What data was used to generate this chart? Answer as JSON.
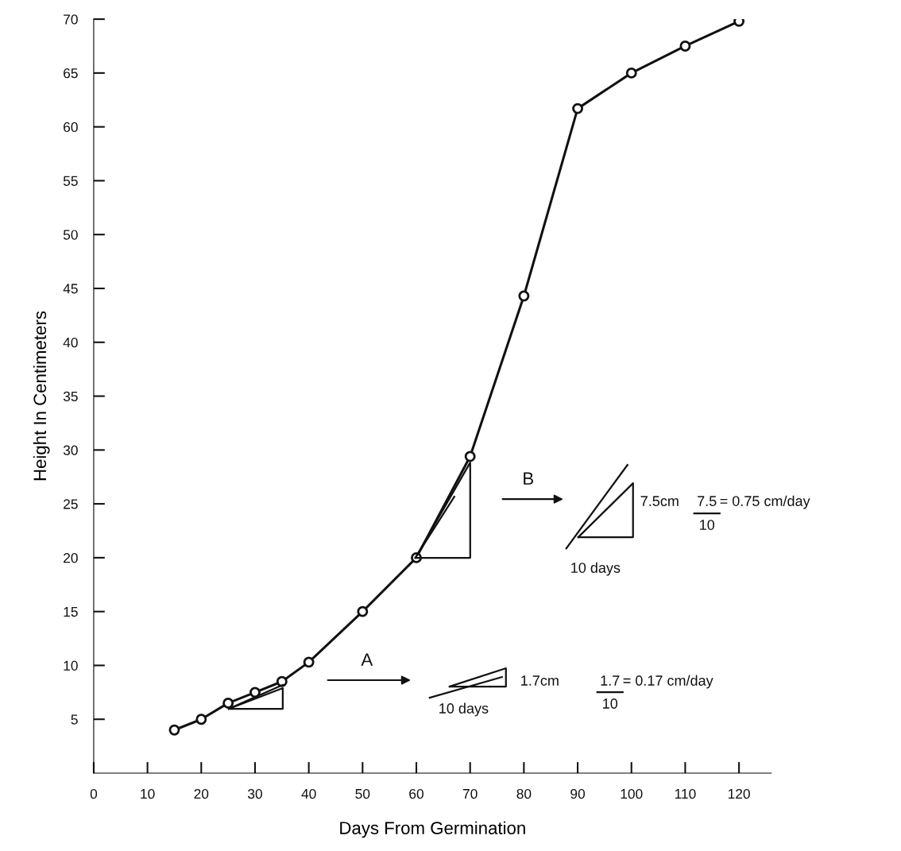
{
  "chart_data": {
    "type": "line",
    "xlabel": "Days From Germination",
    "ylabel": "Height In Centimeters",
    "x": [
      15,
      20,
      25,
      30,
      35,
      40,
      50,
      60,
      70,
      80,
      90,
      100,
      110,
      120
    ],
    "values": [
      4,
      5,
      6.5,
      7.5,
      8.5,
      10.3,
      15,
      20,
      29.4,
      44.3,
      61.7,
      65,
      67.5,
      69.8
    ],
    "color": "#111111",
    "marker": "circle",
    "line_style": "solid",
    "xlim": [
      0,
      126
    ],
    "ylim": [
      0,
      70
    ],
    "xticks": [
      0,
      10,
      20,
      30,
      40,
      50,
      60,
      70,
      80,
      90,
      100,
      110,
      120
    ],
    "yticks": [
      5,
      10,
      15,
      20,
      25,
      30,
      35,
      40,
      45,
      50,
      55,
      60,
      65,
      70
    ],
    "grid": false,
    "annotations": [
      "A",
      "1.7cm",
      "10 days",
      "1.7",
      "10",
      "= 0.17 cm/day",
      "B",
      "7.5cm",
      "10 days",
      "7.5",
      "10",
      "= 0.75 cm/day"
    ]
  }
}
